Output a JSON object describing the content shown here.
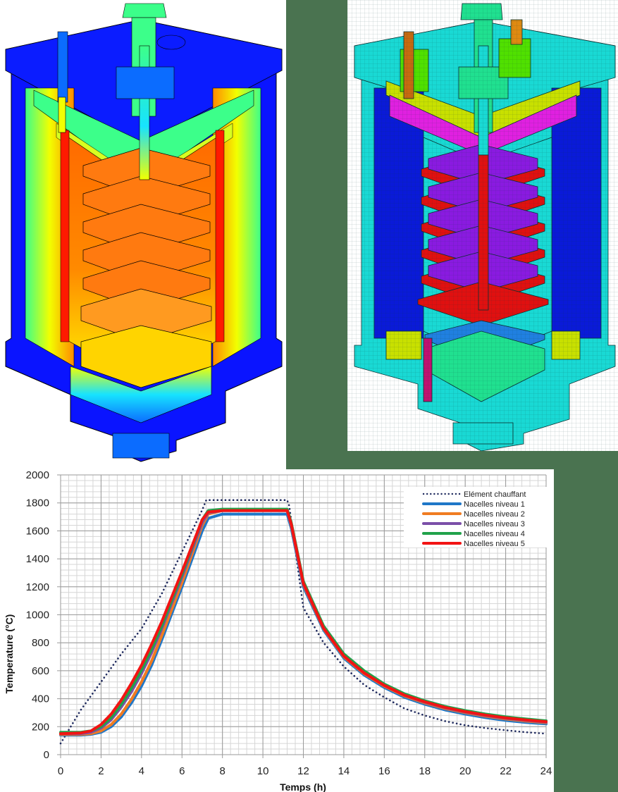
{
  "figures": {
    "thermal_render": {
      "label": "Thermal field cut-away view of furnace",
      "palette": [
        "#0a14ff",
        "#0b6cff",
        "#17e3ff",
        "#3cff8a",
        "#f2ff00",
        "#ffc000",
        "#ff6a00",
        "#ff1a00"
      ]
    },
    "mesh_render": {
      "label": "Finite element mesh cut-away view of furnace"
    }
  },
  "chart_data": {
    "type": "line",
    "title": "",
    "xlabel": "Temps (h)",
    "ylabel": "Temperature (°C)",
    "xlim": [
      0,
      24
    ],
    "ylim": [
      0,
      2000
    ],
    "xticks": [
      0,
      2,
      4,
      6,
      8,
      10,
      12,
      14,
      16,
      18,
      20,
      22,
      24
    ],
    "yticks": [
      0,
      200,
      400,
      600,
      800,
      1000,
      1200,
      1400,
      1600,
      1800,
      2000
    ],
    "grid": true,
    "minor_grid": true,
    "legend_position": "upper right",
    "series": [
      {
        "name": "Elément chauffant",
        "color": "#1f2a5e",
        "style": "dotted",
        "x": [
          0,
          1,
          2,
          3,
          4,
          5,
          6,
          7,
          7.2,
          11.2,
          11.3,
          12,
          13,
          14,
          15,
          16,
          17,
          18,
          19,
          20,
          21,
          22,
          23,
          24
        ],
        "y": [
          80,
          320,
          520,
          720,
          900,
          1150,
          1450,
          1750,
          1820,
          1820,
          1780,
          1050,
          800,
          630,
          500,
          410,
          330,
          280,
          240,
          210,
          190,
          175,
          160,
          150
        ]
      },
      {
        "name": "Nacelles niveau 1",
        "color": "#1f77c8",
        "style": "solid",
        "x": [
          0,
          1,
          1.5,
          2,
          2.5,
          3,
          3.5,
          4,
          4.5,
          5,
          6,
          7,
          7.3,
          8,
          11.2,
          11.4,
          12,
          13,
          14,
          15,
          16,
          17,
          18,
          19,
          20,
          21,
          22,
          23,
          24
        ],
        "y": [
          140,
          140,
          145,
          160,
          200,
          270,
          370,
          490,
          640,
          820,
          1200,
          1600,
          1690,
          1720,
          1720,
          1620,
          1200,
          890,
          690,
          570,
          480,
          410,
          360,
          320,
          290,
          265,
          245,
          230,
          220
        ]
      },
      {
        "name": "Nacelles niveau 2",
        "color": "#f07c22",
        "style": "solid",
        "x": [
          0,
          1,
          1.5,
          2,
          2.5,
          3,
          3.5,
          4,
          4.5,
          5,
          6,
          7,
          7.3,
          8,
          11.2,
          11.4,
          12,
          13,
          14,
          15,
          16,
          17,
          18,
          19,
          20,
          21,
          22,
          23,
          24
        ],
        "y": [
          145,
          145,
          150,
          170,
          215,
          290,
          395,
          520,
          670,
          850,
          1230,
          1640,
          1720,
          1745,
          1745,
          1640,
          1215,
          900,
          700,
          580,
          490,
          420,
          370,
          330,
          300,
          275,
          255,
          240,
          228
        ]
      },
      {
        "name": "Nacelles niveau 3",
        "color": "#7b4fa8",
        "style": "solid-hatched",
        "x": [
          0,
          1,
          1.5,
          2,
          2.5,
          3,
          3.5,
          4,
          4.5,
          5,
          6,
          7,
          7.3,
          8,
          11.2,
          11.4,
          12,
          13,
          14,
          15,
          16,
          17,
          18,
          19,
          20,
          21,
          22,
          23,
          24
        ],
        "y": [
          150,
          150,
          160,
          190,
          250,
          340,
          450,
          580,
          730,
          900,
          1270,
          1660,
          1730,
          1745,
          1745,
          1645,
          1220,
          905,
          705,
          585,
          495,
          425,
          375,
          335,
          305,
          280,
          260,
          245,
          232
        ]
      },
      {
        "name": "Nacelles niveau 4",
        "color": "#21a24a",
        "style": "solid",
        "x": [
          0,
          1,
          1.5,
          2,
          2.5,
          3,
          3.5,
          4,
          4.5,
          5,
          6,
          7,
          7.3,
          8,
          11.2,
          11.4,
          12,
          13,
          14,
          15,
          16,
          17,
          18,
          19,
          20,
          21,
          22,
          23,
          24
        ],
        "y": [
          160,
          160,
          170,
          200,
          265,
          360,
          475,
          605,
          755,
          920,
          1290,
          1680,
          1745,
          1755,
          1755,
          1660,
          1240,
          920,
          720,
          600,
          505,
          435,
          385,
          345,
          315,
          290,
          270,
          255,
          242
        ]
      },
      {
        "name": "Nacelles niveau 5",
        "color": "#f21414",
        "style": "solid",
        "x": [
          0,
          1,
          1.5,
          2,
          2.5,
          3,
          3.5,
          4,
          4.5,
          5,
          6,
          7,
          7.3,
          8,
          11.2,
          11.4,
          12,
          13,
          14,
          15,
          16,
          17,
          18,
          19,
          20,
          21,
          22,
          23,
          24
        ],
        "y": [
          150,
          155,
          170,
          215,
          290,
          390,
          510,
          640,
          790,
          950,
          1310,
          1680,
          1735,
          1745,
          1745,
          1650,
          1225,
          905,
          705,
          585,
          495,
          425,
          378,
          338,
          308,
          283,
          263,
          248,
          236
        ]
      }
    ]
  }
}
